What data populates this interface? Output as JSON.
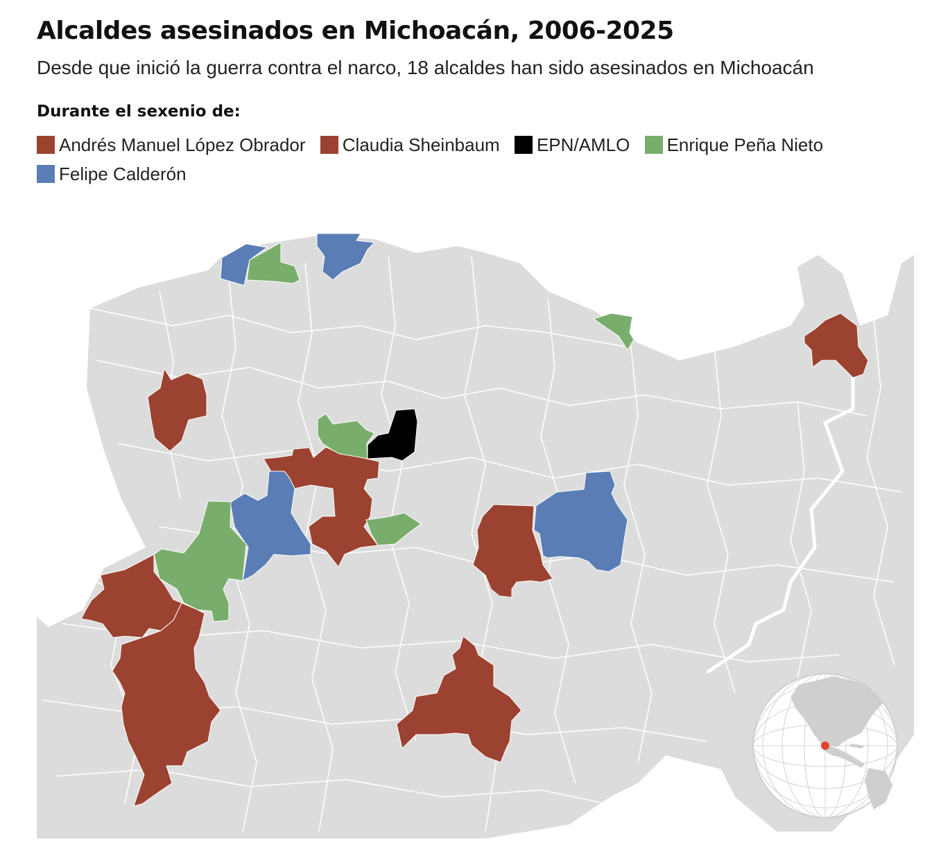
{
  "title": "Alcaldes asesinados en Michoacán, 2006-2025",
  "subtitle": "Desde que inició la guerra contra el narco, 18 alcaldes han sido asesinados en Michoacán",
  "legend": {
    "heading": "Durante el sexenio de:",
    "items": [
      {
        "label": "Andrés Manuel López Obrador",
        "color": "#9b4230"
      },
      {
        "label": "Claudia Sheinbaum",
        "color": "#9b4230"
      },
      {
        "label": "EPN/AMLO",
        "color": "#000000"
      },
      {
        "label": "Enrique Peña Nieto",
        "color": "#79ad6b"
      },
      {
        "label": "Felipe Calderón",
        "color": "#5a7db5"
      }
    ]
  },
  "map": {
    "region": "Michoacán",
    "base_color": "#dcdcdc",
    "border_color": "#ffffff",
    "highlighted_municipality_counts": {
      "Andrés Manuel López Obrador / Claudia Sheinbaum": 7,
      "EPN/AMLO": 1,
      "Enrique Peña Nieto": 5,
      "Felipe Calderón": 4
    },
    "inset_marker_color": "#e0442c"
  }
}
